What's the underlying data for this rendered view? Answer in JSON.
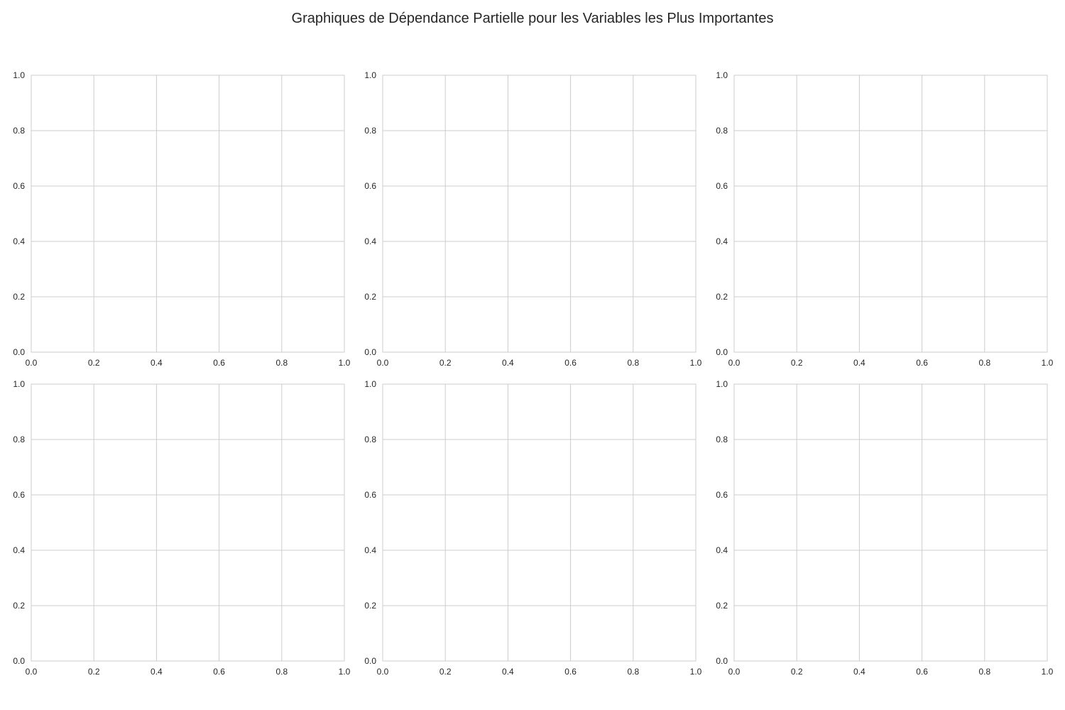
{
  "title": "Graphiques de Dépendance Partielle pour les Variables les Plus Importantes",
  "colors": {
    "grid": "#cccccc",
    "spine": "#cccccc",
    "text": "#262626",
    "background": "#ffffff"
  },
  "chart_data": [
    {
      "type": "line",
      "series": [],
      "xlim": [
        0,
        1
      ],
      "ylim": [
        0,
        1
      ],
      "grid": true,
      "xticks": [
        "0.0",
        "0.2",
        "0.4",
        "0.6",
        "0.8",
        "1.0"
      ],
      "yticks": [
        "0.0",
        "0.2",
        "0.4",
        "0.6",
        "0.8",
        "1.0"
      ]
    },
    {
      "type": "line",
      "series": [],
      "xlim": [
        0,
        1
      ],
      "ylim": [
        0,
        1
      ],
      "grid": true,
      "xticks": [
        "0.0",
        "0.2",
        "0.4",
        "0.6",
        "0.8",
        "1.0"
      ],
      "yticks": [
        "0.0",
        "0.2",
        "0.4",
        "0.6",
        "0.8",
        "1.0"
      ]
    },
    {
      "type": "line",
      "series": [],
      "xlim": [
        0,
        1
      ],
      "ylim": [
        0,
        1
      ],
      "grid": true,
      "xticks": [
        "0.0",
        "0.2",
        "0.4",
        "0.6",
        "0.8",
        "1.0"
      ],
      "yticks": [
        "0.0",
        "0.2",
        "0.4",
        "0.6",
        "0.8",
        "1.0"
      ]
    },
    {
      "type": "line",
      "series": [],
      "xlim": [
        0,
        1
      ],
      "ylim": [
        0,
        1
      ],
      "grid": true,
      "xticks": [
        "0.0",
        "0.2",
        "0.4",
        "0.6",
        "0.8",
        "1.0"
      ],
      "yticks": [
        "0.0",
        "0.2",
        "0.4",
        "0.6",
        "0.8",
        "1.0"
      ]
    },
    {
      "type": "line",
      "series": [],
      "xlim": [
        0,
        1
      ],
      "ylim": [
        0,
        1
      ],
      "grid": true,
      "xticks": [
        "0.0",
        "0.2",
        "0.4",
        "0.6",
        "0.8",
        "1.0"
      ],
      "yticks": [
        "0.0",
        "0.2",
        "0.4",
        "0.6",
        "0.8",
        "1.0"
      ]
    },
    {
      "type": "line",
      "series": [],
      "xlim": [
        0,
        1
      ],
      "ylim": [
        0,
        1
      ],
      "grid": true,
      "xticks": [
        "0.0",
        "0.2",
        "0.4",
        "0.6",
        "0.8",
        "1.0"
      ],
      "yticks": [
        "0.0",
        "0.2",
        "0.4",
        "0.6",
        "0.8",
        "1.0"
      ]
    }
  ]
}
